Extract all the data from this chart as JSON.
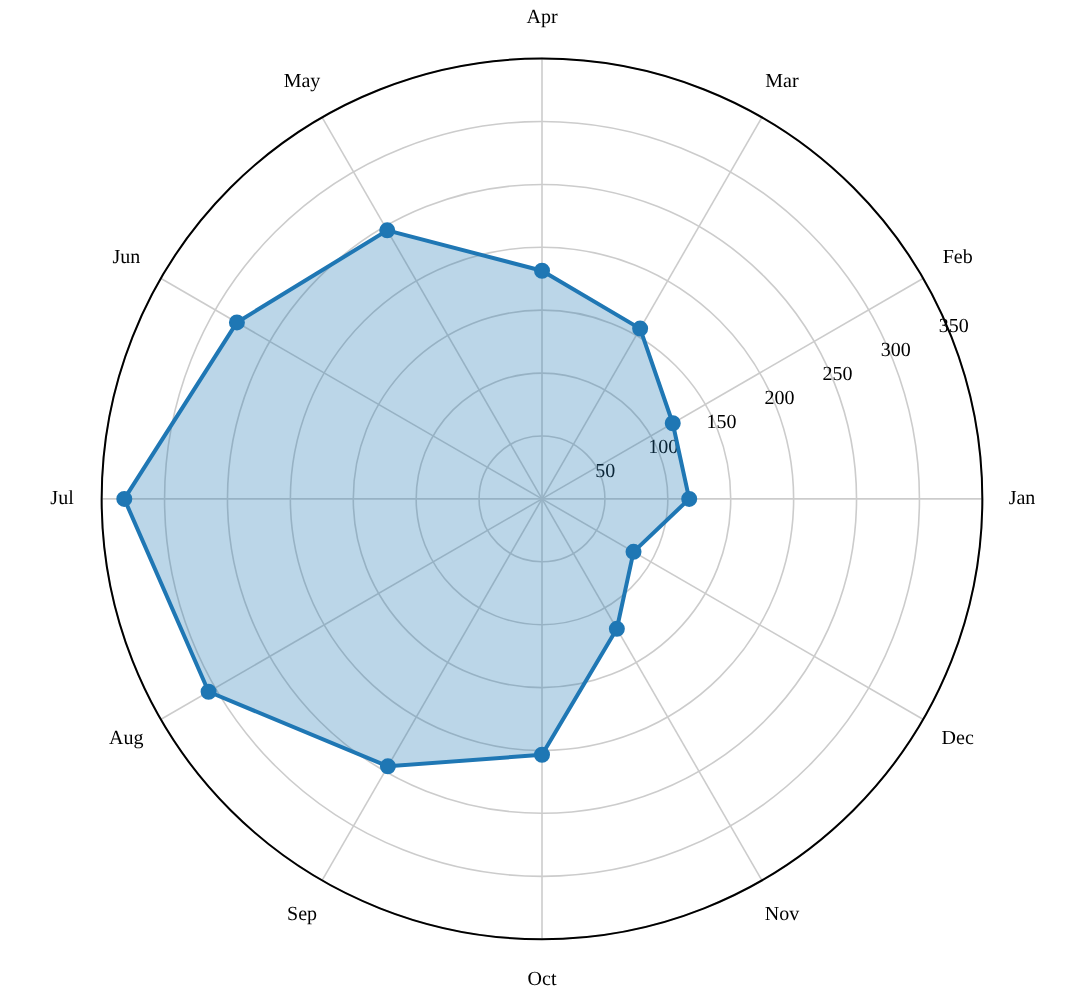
{
  "chart_data": {
    "type": "radar",
    "categories": [
      "Apr",
      "Mar",
      "Feb",
      "Jan",
      "Dec",
      "Nov",
      "Oct",
      "Sep",
      "Aug",
      "Jul",
      "Jun",
      "May"
    ],
    "series": [
      {
        "color": "#1f77b4",
        "values": [
          181,
          156,
          120,
          117,
          84,
          119,
          203,
          245,
          306,
          332,
          280,
          246
        ]
      }
    ],
    "ylim": [
      0,
      350
    ],
    "yticks": [
      50,
      100,
      150,
      200,
      250,
      300,
      350
    ],
    "grid": true,
    "marker": "circle",
    "line_style": "solid"
  }
}
